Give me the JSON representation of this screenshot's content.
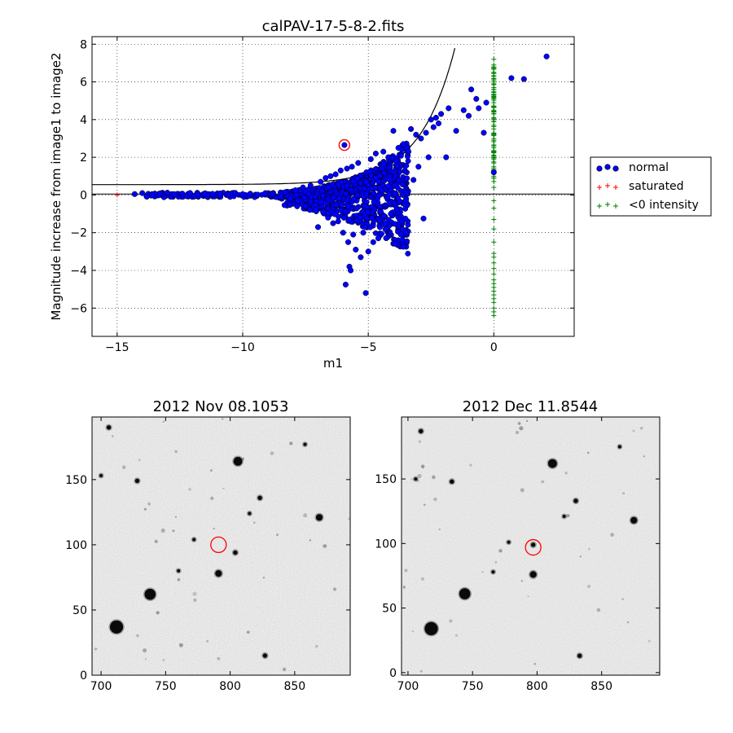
{
  "chart_data": [
    {
      "type": "scatter",
      "title": "calPAV-17-5-8-2.fits",
      "xlabel": "m1",
      "ylabel": "Magnitude increase from image1 to image2",
      "xlim": [
        -16,
        3.2
      ],
      "ylim": [
        -7.5,
        8.4
      ],
      "xticks": [
        -15,
        -10,
        -5,
        0
      ],
      "xtick_labels": [
        "−15",
        "−10",
        "−5",
        "0"
      ],
      "yticks": [
        -6,
        -4,
        -2,
        0,
        2,
        4,
        6,
        8
      ],
      "ytick_labels": [
        "−6",
        "−4",
        "−2",
        "0",
        "2",
        "4",
        "6",
        "8"
      ],
      "grid": true,
      "legend_position": "outside-right",
      "colors": {
        "normal": "#0000ff",
        "saturated": "#ff0000",
        "negative": "#008000",
        "highlight": "#ff0000"
      },
      "legend": [
        {
          "label": "normal",
          "marker": "circle",
          "color": "#0000ff"
        },
        {
          "label": "saturated",
          "marker": "plus",
          "color": "#ff0000"
        },
        {
          "label": "<0 intensity",
          "marker": "plus",
          "color": "#008000"
        }
      ],
      "reference_lines": [
        {
          "kind": "horizontal",
          "y": 0.05
        },
        {
          "kind": "curve",
          "formula": "y = 0.55 + exp(0.72*(x+4.3))"
        }
      ],
      "highlight": {
        "x": -5.95,
        "y": 2.65
      },
      "series": [
        {
          "name": "normal",
          "marker": "circle",
          "points": [
            [
              -14.3,
              0.05
            ],
            [
              -14.0,
              0.1
            ],
            [
              -13.6,
              0.02
            ],
            [
              -13.3,
              0.08
            ],
            [
              -13.0,
              0.12
            ],
            [
              -12.7,
              0.03
            ],
            [
              -12.4,
              0.07
            ],
            [
              -12.1,
              0.1
            ],
            [
              -11.8,
              0.04
            ],
            [
              -11.5,
              0.09
            ],
            [
              -11.2,
              0.06
            ],
            [
              -10.9,
              0.08
            ],
            [
              -10.6,
              0.03
            ],
            [
              -10.3,
              0.11
            ],
            [
              -10.0,
              0.05
            ],
            [
              -9.7,
              0.07
            ],
            [
              -9.4,
              0.02
            ],
            [
              -9.1,
              0.1
            ],
            [
              -8.8,
              0.06
            ],
            [
              -8.5,
              -0.1
            ],
            [
              -8.3,
              0.15
            ],
            [
              -8.1,
              -0.2
            ],
            [
              -7.9,
              0.25
            ],
            [
              -7.8,
              -0.3
            ],
            [
              -7.6,
              0.4
            ],
            [
              -7.5,
              -0.6
            ],
            [
              -7.3,
              0.5
            ],
            [
              -7.1,
              -0.8
            ],
            [
              -7.0,
              -1.7
            ],
            [
              -6.9,
              0.7
            ],
            [
              -6.8,
              -0.9
            ],
            [
              -6.7,
              0.9
            ],
            [
              -6.6,
              -1.2
            ],
            [
              -6.5,
              1.0
            ],
            [
              -6.4,
              -1.5
            ],
            [
              -6.3,
              1.1
            ],
            [
              -6.2,
              -1.4
            ],
            [
              -6.1,
              1.3
            ],
            [
              -6.0,
              -2.0
            ],
            [
              -5.95,
              2.65
            ],
            [
              -5.9,
              -4.75
            ],
            [
              -5.85,
              1.4
            ],
            [
              -5.8,
              -2.5
            ],
            [
              -5.75,
              -3.8
            ],
            [
              -5.7,
              -4.0
            ],
            [
              -5.65,
              1.5
            ],
            [
              -5.6,
              -2.1
            ],
            [
              -5.5,
              -2.9
            ],
            [
              -5.4,
              1.7
            ],
            [
              -5.3,
              -3.3
            ],
            [
              -5.2,
              -2.0
            ],
            [
              -5.1,
              -5.2
            ],
            [
              -5.0,
              -3.0
            ],
            [
              -4.9,
              1.9
            ],
            [
              -4.8,
              -2.5
            ],
            [
              -4.7,
              2.2
            ],
            [
              -4.6,
              -2.3
            ],
            [
              -4.5,
              -0.9
            ],
            [
              -4.4,
              2.3
            ],
            [
              -4.3,
              -1.5
            ],
            [
              -4.2,
              2.0
            ],
            [
              -4.1,
              -1.0
            ],
            [
              -4.0,
              3.4
            ],
            [
              -3.9,
              -2.6
            ],
            [
              -3.8,
              2.5
            ],
            [
              -3.7,
              -2.1
            ],
            [
              -3.6,
              2.7
            ],
            [
              -3.5,
              -0.3
            ],
            [
              -3.4,
              2.3
            ],
            [
              -3.3,
              3.5
            ],
            [
              -3.2,
              0.8
            ],
            [
              -3.1,
              3.2
            ],
            [
              -3.0,
              1.5
            ],
            [
              -2.9,
              3.0
            ],
            [
              -2.8,
              -1.25
            ],
            [
              -2.7,
              3.3
            ],
            [
              -2.6,
              2.0
            ],
            [
              -2.5,
              4.0
            ],
            [
              -2.4,
              3.6
            ],
            [
              -2.3,
              4.1
            ],
            [
              -2.2,
              3.8
            ],
            [
              -2.1,
              4.3
            ],
            [
              -1.9,
              2.0
            ],
            [
              -1.8,
              4.6
            ],
            [
              -1.5,
              3.4
            ],
            [
              -1.2,
              4.5
            ],
            [
              -1.0,
              4.2
            ],
            [
              -0.9,
              5.6
            ],
            [
              -0.7,
              5.1
            ],
            [
              -0.6,
              4.6
            ],
            [
              -0.4,
              3.3
            ],
            [
              -0.3,
              4.9
            ],
            [
              0.0,
              1.2
            ],
            [
              0.7,
              6.2
            ],
            [
              1.2,
              6.15
            ],
            [
              2.1,
              7.35
            ]
          ]
        },
        {
          "name": "saturated",
          "marker": "plus",
          "points": [
            [
              -15.0,
              0.0
            ]
          ]
        },
        {
          "name": "<0 intensity",
          "marker": "plus",
          "points": [
            [
              0,
              7.2
            ],
            [
              0,
              6.9
            ],
            [
              0,
              6.7
            ],
            [
              0,
              6.5
            ],
            [
              0,
              6.3
            ],
            [
              0,
              6.1
            ],
            [
              0,
              5.9
            ],
            [
              0,
              5.7
            ],
            [
              0,
              5.5
            ],
            [
              0,
              5.3
            ],
            [
              0,
              5.1
            ],
            [
              0,
              4.9
            ],
            [
              0,
              4.7
            ],
            [
              0,
              4.5
            ],
            [
              0,
              4.3
            ],
            [
              0,
              4.1
            ],
            [
              0,
              3.9
            ],
            [
              0,
              3.7
            ],
            [
              0,
              3.5
            ],
            [
              0,
              3.2
            ],
            [
              0,
              2.9
            ],
            [
              0,
              2.6
            ],
            [
              0,
              2.3
            ],
            [
              0,
              2.0
            ],
            [
              0,
              1.7
            ],
            [
              0,
              1.3
            ],
            [
              0,
              0.9
            ],
            [
              0,
              0.4
            ],
            [
              0,
              -0.3
            ],
            [
              0,
              -0.7
            ],
            [
              0,
              -1.3
            ],
            [
              0,
              -1.8
            ],
            [
              0,
              -2.5
            ],
            [
              0,
              -3.1
            ],
            [
              0,
              -3.3
            ],
            [
              0,
              -3.6
            ],
            [
              0,
              -3.9
            ],
            [
              0,
              -4.2
            ],
            [
              0,
              -4.5
            ],
            [
              0,
              -4.7
            ],
            [
              0,
              -4.9
            ],
            [
              0,
              -5.1
            ],
            [
              0,
              -5.3
            ],
            [
              0,
              -5.5
            ],
            [
              0,
              -5.7
            ],
            [
              0,
              -6.0
            ],
            [
              0,
              -6.2
            ],
            [
              0,
              -6.4
            ]
          ]
        }
      ]
    },
    {
      "type": "image",
      "title": "2012 Nov 08.1053",
      "xlim": [
        693,
        893
      ],
      "ylim": [
        0,
        198
      ],
      "xticks": [
        700,
        750,
        800,
        850
      ],
      "xtick_labels": [
        "700",
        "750",
        "800",
        "850"
      ],
      "yticks": [
        0,
        50,
        100,
        150
      ],
      "ytick_labels": [
        "0",
        "50",
        "100",
        "150"
      ],
      "marker_circle": {
        "x": 791,
        "y": 100,
        "color": "#ff0000"
      },
      "stars": [
        [
          712,
          37,
          6
        ],
        [
          738,
          62,
          5
        ],
        [
          806,
          164,
          4
        ],
        [
          869,
          121,
          3
        ],
        [
          791,
          78,
          3
        ],
        [
          728,
          149,
          2
        ],
        [
          706,
          190,
          2
        ],
        [
          823,
          136,
          2
        ],
        [
          827,
          15,
          2
        ],
        [
          804,
          94,
          2
        ],
        [
          772,
          104,
          1.5
        ],
        [
          760,
          80,
          1.5
        ],
        [
          815,
          124,
          1.5
        ],
        [
          700,
          153,
          1.5
        ],
        [
          858,
          177,
          1.5
        ]
      ]
    },
    {
      "type": "image",
      "title": "2012 Dec 11.8544",
      "xlim": [
        695,
        895
      ],
      "ylim": [
        -2,
        198
      ],
      "xticks": [
        700,
        750,
        800,
        850
      ],
      "xtick_labels": [
        "700",
        "750",
        "800",
        "850"
      ],
      "yticks": [
        0,
        50,
        100,
        150
      ],
      "ytick_labels": [
        "0",
        "50",
        "100",
        "150"
      ],
      "marker_circle": {
        "x": 797,
        "y": 97,
        "color": "#ff0000"
      },
      "stars": [
        [
          718,
          34,
          6
        ],
        [
          744,
          61,
          5
        ],
        [
          812,
          162,
          4
        ],
        [
          875,
          118,
          3
        ],
        [
          797,
          76,
          3
        ],
        [
          734,
          148,
          2
        ],
        [
          710,
          187,
          2
        ],
        [
          830,
          133,
          2
        ],
        [
          833,
          13,
          2
        ],
        [
          797,
          99,
          2
        ],
        [
          778,
          101,
          1.5
        ],
        [
          766,
          78,
          1.5
        ],
        [
          821,
          121,
          1.5
        ],
        [
          706,
          150,
          1.5
        ],
        [
          864,
          175,
          1.5
        ]
      ]
    }
  ]
}
